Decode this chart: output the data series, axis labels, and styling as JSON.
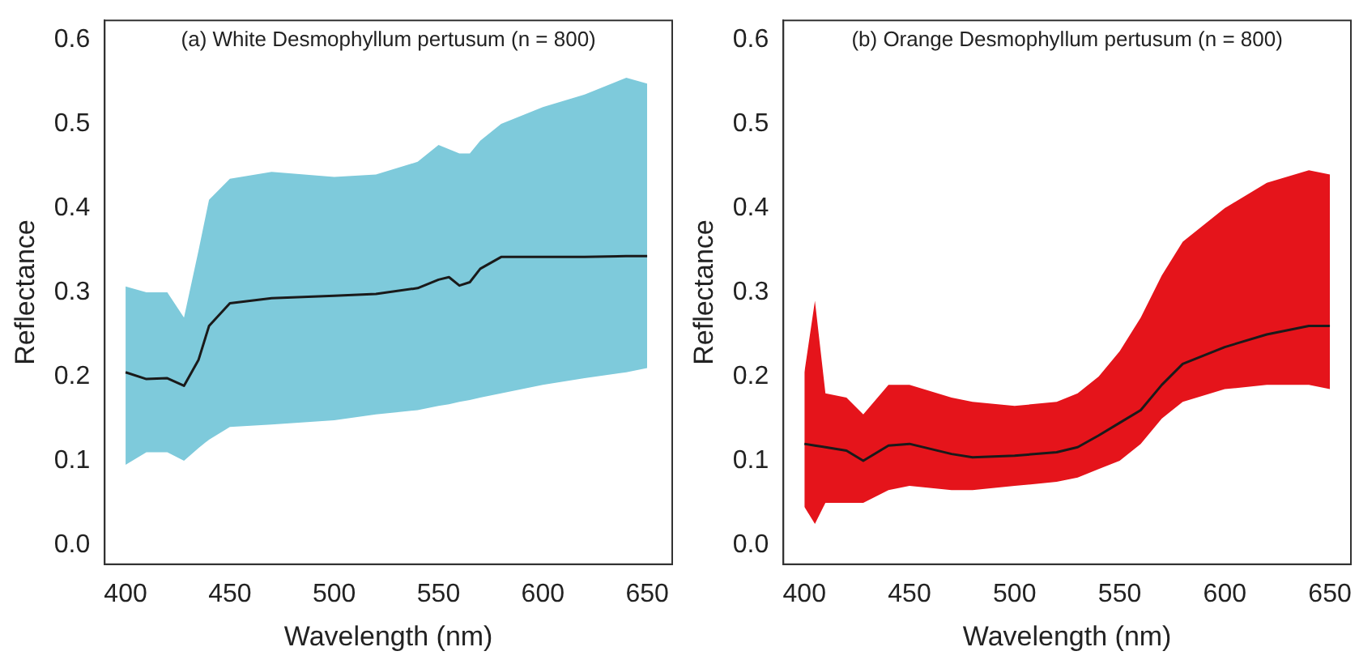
{
  "chart_data": [
    {
      "type": "line",
      "title": "(a) White Desmophyllum pertusum (n = 800)",
      "xlabel": "Wavelength (nm)",
      "ylabel": "Reflectance",
      "xlim": [
        390,
        662
      ],
      "ylim": [
        -0.023,
        0.623
      ],
      "xticks": [
        400,
        450,
        500,
        550,
        600,
        650
      ],
      "yticks": [
        {
          "value": 0,
          "label": "0.0"
        },
        0.1,
        0.2,
        0.3,
        0.4,
        0.5,
        0.6
      ],
      "grid": false,
      "legend": false,
      "marker": "none",
      "line_style": "solid",
      "x": [
        400,
        410,
        420,
        428,
        435,
        440,
        450,
        470,
        500,
        520,
        540,
        550,
        555,
        560,
        565,
        570,
        580,
        600,
        620,
        640,
        650
      ],
      "series": [
        {
          "color": "#1a1a1a",
          "values": [
            0.205,
            0.197,
            0.198,
            0.189,
            0.22,
            0.26,
            0.287,
            0.293,
            0.296,
            0.298,
            0.305,
            0.315,
            0.318,
            0.308,
            0.312,
            0.328,
            0.342,
            0.342,
            0.342,
            0.343,
            0.343
          ],
          "upper": [
            0.307,
            0.3,
            0.3,
            0.27,
            0.35,
            0.41,
            0.435,
            0.443,
            0.437,
            0.44,
            0.455,
            0.475,
            0.47,
            0.465,
            0.465,
            0.48,
            0.5,
            0.52,
            0.535,
            0.555,
            0.548
          ],
          "lower": [
            0.095,
            0.11,
            0.11,
            0.1,
            0.115,
            0.125,
            0.14,
            0.143,
            0.148,
            0.155,
            0.16,
            0.165,
            0.167,
            0.17,
            0.172,
            0.175,
            0.18,
            0.19,
            0.198,
            0.205,
            0.21
          ]
        }
      ]
    },
    {
      "type": "line",
      "title": "(b) Orange Desmophyllum pertusum (n = 800)",
      "xlabel": "Wavelength (nm)",
      "ylabel": "Reflectance",
      "xlim": [
        390,
        660
      ],
      "ylim": [
        -0.023,
        0.623
      ],
      "xticks": [
        400,
        450,
        500,
        550,
        600,
        650
      ],
      "yticks": [
        {
          "value": 0,
          "label": "0.0"
        },
        0.1,
        0.2,
        0.3,
        0.4,
        0.5,
        0.6
      ],
      "grid": false,
      "legend": false,
      "marker": "none",
      "line_style": "solid",
      "x": [
        400,
        405,
        410,
        420,
        428,
        440,
        450,
        470,
        480,
        500,
        520,
        530,
        540,
        550,
        560,
        570,
        580,
        600,
        620,
        640,
        650
      ],
      "series": [
        {
          "color": "#1a1a1a",
          "values": [
            0.12,
            0.118,
            0.116,
            0.112,
            0.1,
            0.118,
            0.12,
            0.108,
            0.104,
            0.106,
            0.11,
            0.116,
            0.13,
            0.145,
            0.16,
            0.19,
            0.215,
            0.235,
            0.25,
            0.26,
            0.26
          ],
          "upper": [
            0.205,
            0.29,
            0.18,
            0.175,
            0.155,
            0.19,
            0.19,
            0.175,
            0.17,
            0.165,
            0.17,
            0.18,
            0.2,
            0.23,
            0.27,
            0.32,
            0.36,
            0.4,
            0.43,
            0.445,
            0.44
          ],
          "lower": [
            0.045,
            0.025,
            0.05,
            0.05,
            0.05,
            0.065,
            0.07,
            0.065,
            0.065,
            0.07,
            0.075,
            0.08,
            0.09,
            0.1,
            0.12,
            0.15,
            0.17,
            0.185,
            0.19,
            0.19,
            0.185
          ]
        }
      ]
    }
  ]
}
